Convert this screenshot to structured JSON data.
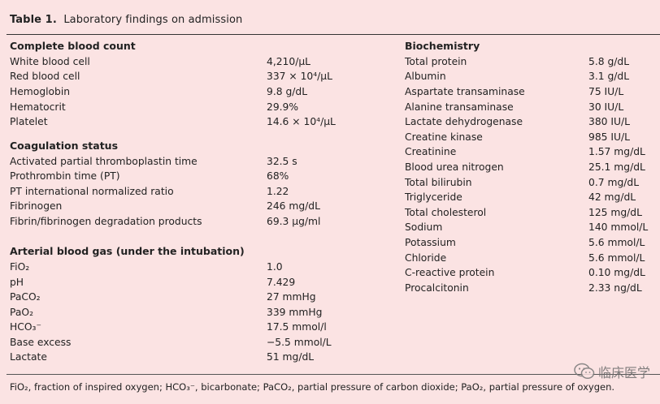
{
  "title": {
    "label": "Table 1.",
    "text": "Laboratory findings on admission"
  },
  "left": {
    "cbc": {
      "heading": "Complete blood count",
      "rows": [
        {
          "label": "White blood cell",
          "value": "4,210/μL"
        },
        {
          "label": "Red blood cell",
          "value": "337 × 10⁴/μL"
        },
        {
          "label": "Hemoglobin",
          "value": "9.8 g/dL"
        },
        {
          "label": "Hematocrit",
          "value": "29.9%"
        },
        {
          "label": "Platelet",
          "value": "14.6 × 10⁴/μL"
        }
      ]
    },
    "coag": {
      "heading": "Coagulation status",
      "rows": [
        {
          "label": "Activated partial thromboplastin time",
          "value": "32.5 s"
        },
        {
          "label": "Prothrombin time (PT)",
          "value": "68%"
        },
        {
          "label": "PT international normalized ratio",
          "value": "1.22"
        },
        {
          "label": "Fibrinogen",
          "value": "246 mg/dL"
        },
        {
          "label": "Fibrin/fibrinogen degradation products",
          "value": "69.3 μg/ml"
        }
      ]
    },
    "abg": {
      "heading": "Arterial blood gas (under the intubation)",
      "rows": [
        {
          "label": "FiO₂",
          "value": "1.0"
        },
        {
          "label": "pH",
          "value": "7.429"
        },
        {
          "label": "PaCO₂",
          "value": "27 mmHg"
        },
        {
          "label": "PaO₂",
          "value": "339 mmHg"
        },
        {
          "label": "HCO₃⁻",
          "value": "17.5 mmol/l"
        },
        {
          "label": "Base excess",
          "value": "−5.5 mmol/L"
        },
        {
          "label": "Lactate",
          "value": "51 mg/dL"
        }
      ]
    }
  },
  "right": {
    "heading": "Biochemistry",
    "rows": [
      {
        "label": "Total protein",
        "value": "5.8 g/dL"
      },
      {
        "label": "Albumin",
        "value": "3.1 g/dL"
      },
      {
        "label": "Aspartate transaminase",
        "value": "75 IU/L"
      },
      {
        "label": "Alanine transaminase",
        "value": "30 IU/L"
      },
      {
        "label": "Lactate dehydrogenase",
        "value": "380 IU/L"
      },
      {
        "label": "Creatine kinase",
        "value": "985 IU/L"
      },
      {
        "label": "Creatinine",
        "value": "1.57 mg/dL"
      },
      {
        "label": "Blood urea nitrogen",
        "value": "25.1 mg/dL"
      },
      {
        "label": "Total bilirubin",
        "value": "0.7 mg/dL"
      },
      {
        "label": "Triglyceride",
        "value": "42 mg/dL"
      },
      {
        "label": "Total cholesterol",
        "value": "125 mg/dL"
      },
      {
        "label": "Sodium",
        "value": "140 mmol/L"
      },
      {
        "label": "Potassium",
        "value": "5.6 mmol/L"
      },
      {
        "label": "Chloride",
        "value": "5.6 mmol/L"
      },
      {
        "label": "C-reactive protein",
        "value": "0.10 mg/dL"
      },
      {
        "label": "Procalcitonin",
        "value": "2.33 ng/dL"
      }
    ]
  },
  "footnote": "FiO₂, fraction of inspired oxygen; HCO₃⁻, bicarbonate; PaCO₂, partial pressure of carbon dioxide; PaO₂, partial pressure of oxygen.",
  "watermark": {
    "text": "临床医学",
    "icon": "wechat-icon"
  }
}
